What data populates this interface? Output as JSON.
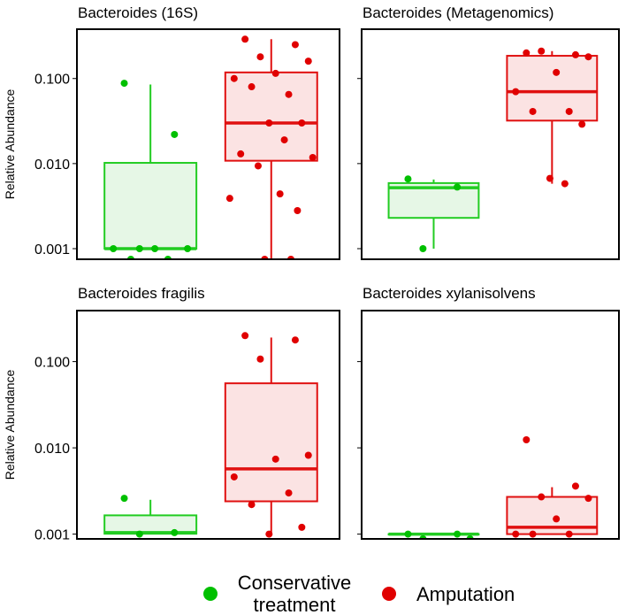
{
  "chart_data": [
    {
      "type": "box",
      "title": "Bacteroides (16S)",
      "ylabel": "Relative Abundance",
      "yscale": "log",
      "ylim": [
        0.00075,
        0.38
      ],
      "yticks": [
        {
          "value": 0.001,
          "label": "0.001"
        },
        {
          "value": 0.01,
          "label": "0.010"
        },
        {
          "value": 0.1,
          "label": "0.100"
        }
      ],
      "groups": [
        {
          "name": "Conservative treatment",
          "box": {
            "q1": 0.001,
            "median": 0.001,
            "q3": 0.0102,
            "whisker_low": 0.001,
            "whisker_high": 0.085
          },
          "points": [
            0.088,
            0.022,
            0.001,
            0.001,
            0.001,
            0.001,
            0.00075,
            0.00075
          ]
        },
        {
          "name": "Amputation",
          "box": {
            "q1": 0.0108,
            "median": 0.03,
            "q3": 0.118,
            "whisker_low": 0.00075,
            "whisker_high": 0.29
          },
          "points": [
            0.29,
            0.25,
            0.18,
            0.16,
            0.115,
            0.1,
            0.065,
            0.08,
            0.03,
            0.03,
            0.019,
            0.013,
            0.0118,
            0.0094,
            0.0044,
            0.0039,
            0.0028,
            0.00075,
            0.00075
          ]
        }
      ]
    },
    {
      "type": "box",
      "title": "Bacteroides (Metagenomics)",
      "ylabel": "",
      "yscale": "log",
      "ylim": [
        0.00075,
        0.38
      ],
      "yticks": [
        {
          "value": 0.001,
          "label": ""
        },
        {
          "value": 0.01,
          "label": ""
        },
        {
          "value": 0.1,
          "label": ""
        }
      ],
      "groups": [
        {
          "name": "Conservative treatment",
          "box": {
            "q1": 0.0023,
            "median": 0.0052,
            "q3": 0.0059,
            "whisker_low": 0.001,
            "whisker_high": 0.0065
          },
          "points": [
            0.0066,
            0.0053,
            0.001
          ]
        },
        {
          "name": "Amputation",
          "box": {
            "q1": 0.032,
            "median": 0.07,
            "q3": 0.185,
            "whisker_low": 0.0058,
            "whisker_high": 0.21
          },
          "points": [
            0.2,
            0.19,
            0.21,
            0.18,
            0.118,
            0.07,
            0.041,
            0.041,
            0.029,
            0.0067,
            0.0058
          ]
        }
      ]
    },
    {
      "type": "box",
      "title": "Bacteroides fragilis",
      "ylabel": "Relative Abundance",
      "yscale": "log",
      "ylim": [
        0.00088,
        0.39
      ],
      "yticks": [
        {
          "value": 0.001,
          "label": "0.001"
        },
        {
          "value": 0.01,
          "label": "0.010"
        },
        {
          "value": 0.1,
          "label": "0.100"
        }
      ],
      "groups": [
        {
          "name": "Conservative treatment",
          "box": {
            "q1": 0.00101,
            "median": 0.00104,
            "q3": 0.00165,
            "whisker_low": 0.001,
            "whisker_high": 0.0025
          },
          "points": [
            0.0026,
            0.00104,
            0.001
          ]
        },
        {
          "name": "Amputation",
          "box": {
            "q1": 0.0024,
            "median": 0.0057,
            "q3": 0.056,
            "whisker_low": 0.001,
            "whisker_high": 0.19
          },
          "points": [
            0.2,
            0.178,
            0.107,
            0.0082,
            0.0074,
            0.0046,
            0.003,
            0.0022,
            0.0012,
            0.001
          ]
        }
      ]
    },
    {
      "type": "box",
      "title": "Bacteroides xylanisolvens",
      "ylabel": "",
      "yscale": "log",
      "ylim": [
        0.00088,
        0.39
      ],
      "yticks": [
        {
          "value": 0.001,
          "label": ""
        },
        {
          "value": 0.01,
          "label": ""
        },
        {
          "value": 0.1,
          "label": ""
        }
      ],
      "groups": [
        {
          "name": "Conservative treatment",
          "box": {
            "q1": 0.001,
            "median": 0.001,
            "q3": 0.001,
            "whisker_low": 0.001,
            "whisker_high": 0.001
          },
          "points": [
            0.001,
            0.001,
            0.00088,
            0.00088
          ]
        },
        {
          "name": "Amputation",
          "box": {
            "q1": 0.001,
            "median": 0.0012,
            "q3": 0.0027,
            "whisker_low": 0.001,
            "whisker_high": 0.0035
          },
          "points": [
            0.0124,
            0.0036,
            0.0027,
            0.0026,
            0.0015,
            0.001,
            0.001,
            0.001
          ]
        }
      ]
    }
  ],
  "legend": {
    "placement": "bottom",
    "items": [
      {
        "label_lines": [
          "Conservative",
          "treatment"
        ],
        "color": "#00c000"
      },
      {
        "label_lines": [
          "Amputation"
        ],
        "color": "#e00000"
      }
    ]
  },
  "colors": {
    "conservative_line": "#22cc22",
    "conservative_fill": "#e6f7e6",
    "conservative_point": "#00c000",
    "amputation_line": "#e01010",
    "amputation_fill": "#fbe3e3",
    "amputation_point": "#e00000"
  }
}
